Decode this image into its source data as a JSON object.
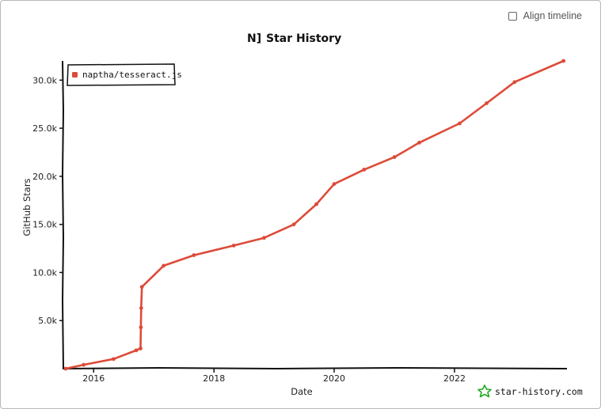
{
  "controls": {
    "align_timeline_label": "Align timeline",
    "align_timeline_checked": false
  },
  "logo_glyph": "N]",
  "brand": {
    "text": "star-history.com"
  },
  "colors": {
    "series": "#dd4b39",
    "brand_star": "#22aa22",
    "axis": "#111111"
  },
  "chart_data": {
    "type": "line",
    "title": "Star History",
    "xlabel": "Date",
    "ylabel": "GitHub Stars",
    "x_ticks": [
      "2016",
      "2018",
      "2020",
      "2022"
    ],
    "y_ticks": [
      "5.0k",
      "10.0k",
      "15.0k",
      "20.0k",
      "25.0k",
      "30.0k"
    ],
    "y_tick_values": [
      5000,
      10000,
      15000,
      20000,
      25000,
      30000
    ],
    "xlim": [
      "2015-07-01",
      "2023-11-15"
    ],
    "ylim": [
      0,
      32000
    ],
    "legend_position": "top-left",
    "series": [
      {
        "name": "naptha/tesseract.js",
        "points": [
          [
            "2015-07-15",
            0
          ],
          [
            "2015-11-01",
            400
          ],
          [
            "2016-05-01",
            1000
          ],
          [
            "2016-09-15",
            1900
          ],
          [
            "2016-10-12",
            2100
          ],
          [
            "2016-10-14",
            4300
          ],
          [
            "2016-10-16",
            6300
          ],
          [
            "2016-10-20",
            8500
          ],
          [
            "2017-03-01",
            10700
          ],
          [
            "2017-09-01",
            11800
          ],
          [
            "2018-05-01",
            12800
          ],
          [
            "2018-11-01",
            13600
          ],
          [
            "2019-05-01",
            15000
          ],
          [
            "2019-09-15",
            17100
          ],
          [
            "2020-01-01",
            19200
          ],
          [
            "2020-07-01",
            20700
          ],
          [
            "2021-01-01",
            22000
          ],
          [
            "2021-06-01",
            23500
          ],
          [
            "2022-02-01",
            25500
          ],
          [
            "2022-07-15",
            27600
          ],
          [
            "2023-01-01",
            29800
          ],
          [
            "2023-10-25",
            32000
          ]
        ]
      }
    ]
  }
}
